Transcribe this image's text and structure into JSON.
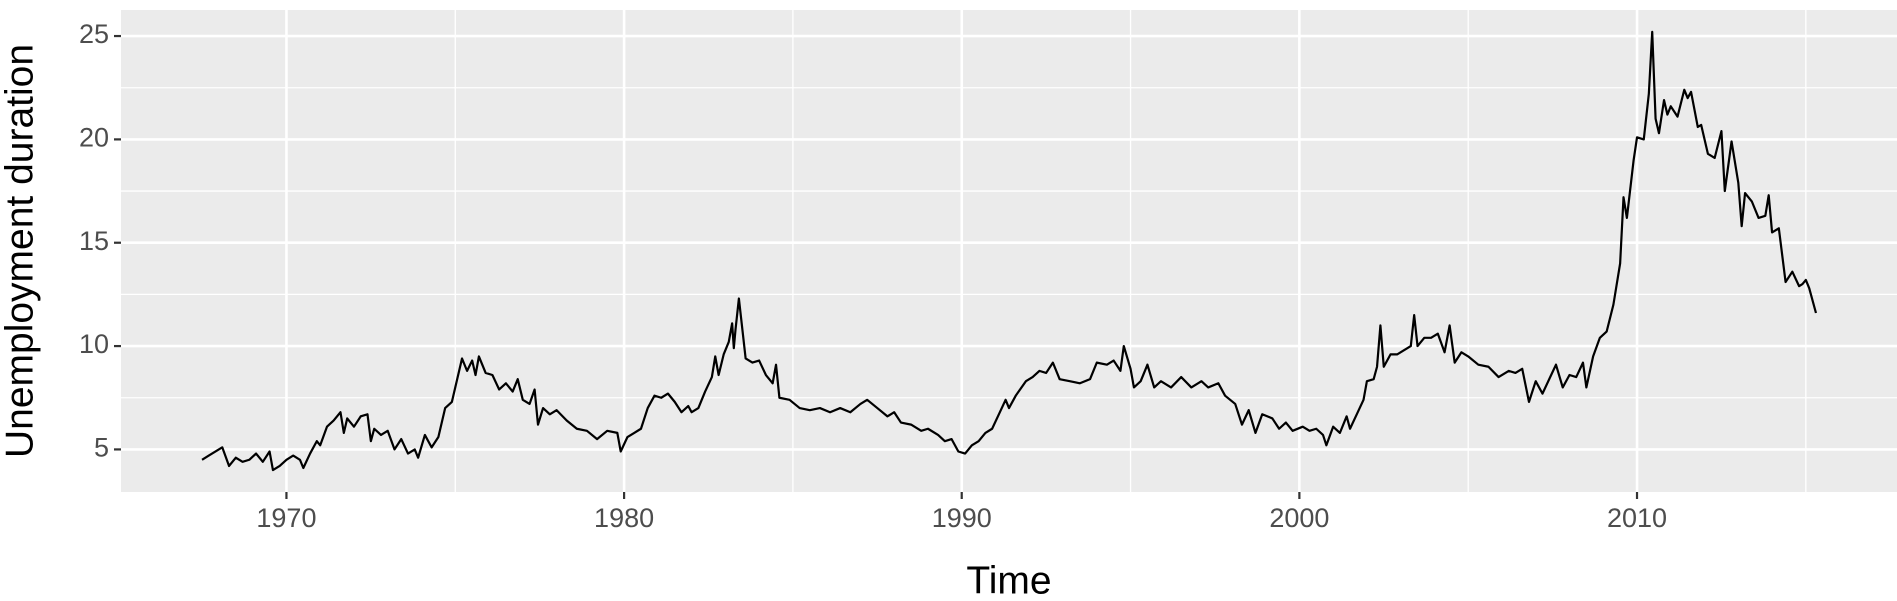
{
  "chart_data": {
    "type": "line",
    "xlabel": "Time",
    "ylabel": "Unemployment duration",
    "x": [
      1967.5,
      1967.7,
      1967.9,
      1968.1,
      1968.3,
      1968.5,
      1968.7,
      1968.9,
      1969.1,
      1969.3,
      1969.5,
      1969.6,
      1969.8,
      1970.0,
      1970.2,
      1970.4,
      1970.5,
      1970.7,
      1970.9,
      1971.0,
      1971.2,
      1971.4,
      1971.6,
      1971.7,
      1971.8,
      1972.0,
      1972.2,
      1972.4,
      1972.5,
      1972.6,
      1972.8,
      1973.0,
      1973.2,
      1973.4,
      1973.6,
      1973.8,
      1973.9,
      1974.1,
      1974.3,
      1974.5,
      1974.7,
      1974.9,
      1975.2,
      1975.35,
      1975.5,
      1975.6,
      1975.7,
      1975.9,
      1976.1,
      1976.3,
      1976.5,
      1976.7,
      1976.85,
      1977.0,
      1977.2,
      1977.35,
      1977.45,
      1977.6,
      1977.8,
      1978.0,
      1978.3,
      1978.6,
      1978.9,
      1979.2,
      1979.5,
      1979.8,
      1979.9,
      1980.1,
      1980.3,
      1980.5,
      1980.7,
      1980.9,
      1981.1,
      1981.3,
      1981.5,
      1981.7,
      1981.9,
      1982.0,
      1982.2,
      1982.4,
      1982.6,
      1982.7,
      1982.8,
      1982.95,
      1983.1,
      1983.2,
      1983.25,
      1983.3,
      1983.4,
      1983.6,
      1983.8,
      1984.0,
      1984.2,
      1984.4,
      1984.5,
      1984.6,
      1984.9,
      1985.2,
      1985.5,
      1985.8,
      1986.1,
      1986.4,
      1986.7,
      1987.0,
      1987.2,
      1987.5,
      1987.8,
      1988.0,
      1988.2,
      1988.5,
      1988.8,
      1989.0,
      1989.3,
      1989.5,
      1989.7,
      1989.9,
      1990.1,
      1990.3,
      1990.5,
      1990.7,
      1990.9,
      1991.1,
      1991.3,
      1991.4,
      1991.6,
      1991.9,
      1992.1,
      1992.3,
      1992.5,
      1992.7,
      1992.9,
      1993.2,
      1993.5,
      1993.8,
      1994.0,
      1994.3,
      1994.5,
      1994.7,
      1994.8,
      1995.0,
      1995.1,
      1995.3,
      1995.5,
      1995.7,
      1995.9,
      1996.2,
      1996.5,
      1996.8,
      1997.1,
      1997.3,
      1997.6,
      1997.8,
      1998.1,
      1998.3,
      1998.5,
      1998.7,
      1998.9,
      1999.2,
      1999.4,
      1999.6,
      1999.8,
      2000.1,
      2000.3,
      2000.5,
      2000.7,
      2000.8,
      2001.0,
      2001.2,
      2001.4,
      2001.5,
      2001.7,
      2001.9,
      2002.0,
      2002.2,
      2002.3,
      2002.4,
      2002.5,
      2002.7,
      2002.9,
      2003.1,
      2003.3,
      2003.4,
      2003.5,
      2003.7,
      2003.9,
      2004.1,
      2004.3,
      2004.45,
      2004.6,
      2004.8,
      2005.0,
      2005.3,
      2005.6,
      2005.9,
      2006.2,
      2006.4,
      2006.6,
      2006.8,
      2007.0,
      2007.2,
      2007.4,
      2007.6,
      2007.8,
      2008.0,
      2008.2,
      2008.4,
      2008.5,
      2008.7,
      2008.9,
      2009.1,
      2009.3,
      2009.5,
      2009.6,
      2009.7,
      2009.9,
      2010.0,
      2010.2,
      2010.35,
      2010.45,
      2010.55,
      2010.65,
      2010.8,
      2010.9,
      2011.0,
      2011.2,
      2011.4,
      2011.5,
      2011.6,
      2011.8,
      2011.9,
      2012.1,
      2012.3,
      2012.5,
      2012.6,
      2012.8,
      2013.0,
      2013.1,
      2013.2,
      2013.4,
      2013.6,
      2013.8,
      2013.9,
      2014.0,
      2014.2,
      2014.4,
      2014.6,
      2014.8,
      2014.9,
      2015.0,
      2015.1,
      2015.3
    ],
    "values": [
      4.5,
      4.7,
      4.9,
      5.1,
      4.2,
      4.6,
      4.4,
      4.5,
      4.8,
      4.4,
      4.9,
      4.0,
      4.2,
      4.5,
      4.7,
      4.5,
      4.1,
      4.8,
      5.4,
      5.2,
      6.1,
      6.4,
      6.8,
      5.8,
      6.5,
      6.1,
      6.6,
      6.7,
      5.4,
      6.0,
      5.7,
      5.9,
      5.0,
      5.5,
      4.8,
      5.0,
      4.6,
      5.7,
      5.1,
      5.6,
      7.0,
      7.3,
      9.4,
      8.8,
      9.3,
      8.6,
      9.5,
      8.7,
      8.6,
      7.9,
      8.2,
      7.8,
      8.4,
      7.4,
      7.2,
      7.9,
      6.2,
      7.0,
      6.7,
      6.9,
      6.4,
      6.0,
      5.9,
      5.5,
      5.9,
      5.8,
      4.9,
      5.6,
      5.8,
      6.0,
      7.0,
      7.6,
      7.5,
      7.7,
      7.3,
      6.8,
      7.1,
      6.8,
      7.0,
      7.8,
      8.5,
      9.5,
      8.6,
      9.6,
      10.2,
      11.1,
      9.9,
      10.8,
      12.3,
      9.4,
      9.2,
      9.3,
      8.6,
      8.2,
      9.1,
      7.5,
      7.4,
      7.0,
      6.9,
      7.0,
      6.8,
      7.0,
      6.8,
      7.2,
      7.4,
      7.0,
      6.6,
      6.8,
      6.3,
      6.2,
      5.9,
      6.0,
      5.7,
      5.4,
      5.5,
      4.9,
      4.8,
      5.2,
      5.4,
      5.8,
      6.0,
      6.7,
      7.4,
      7.0,
      7.6,
      8.3,
      8.5,
      8.8,
      8.7,
      9.2,
      8.4,
      8.3,
      8.2,
      8.4,
      9.2,
      9.1,
      9.3,
      8.8,
      10.0,
      8.9,
      8.0,
      8.3,
      9.1,
      8.0,
      8.3,
      8.0,
      8.5,
      8.0,
      8.3,
      8.0,
      8.2,
      7.6,
      7.2,
      6.2,
      6.9,
      5.8,
      6.7,
      6.5,
      6.0,
      6.3,
      5.9,
      6.1,
      5.9,
      6.0,
      5.7,
      5.2,
      6.1,
      5.8,
      6.6,
      6.0,
      6.7,
      7.4,
      8.3,
      8.4,
      9.0,
      11.0,
      9.0,
      9.6,
      9.6,
      9.8,
      10.0,
      11.5,
      10.0,
      10.4,
      10.4,
      10.6,
      9.7,
      11.0,
      9.2,
      9.7,
      9.5,
      9.1,
      9.0,
      8.5,
      8.8,
      8.7,
      8.9,
      7.3,
      8.3,
      7.7,
      8.4,
      9.1,
      8.0,
      8.6,
      8.5,
      9.2,
      8.0,
      9.5,
      10.4,
      10.7,
      12.0,
      14.0,
      17.2,
      16.2,
      19.0,
      20.1,
      20.0,
      22.2,
      25.2,
      21.0,
      20.3,
      21.9,
      21.2,
      21.6,
      21.1,
      22.4,
      22.0,
      22.3,
      20.6,
      20.7,
      19.3,
      19.1,
      20.4,
      17.5,
      19.9,
      17.9,
      15.8,
      17.4,
      17.0,
      16.2,
      16.3,
      17.3,
      15.5,
      15.7,
      13.1,
      13.6,
      12.9,
      13.0,
      13.2,
      12.8,
      11.6
    ],
    "color": "#000000",
    "xlim": [
      1965.1,
      2017.7
    ],
    "xticks": [
      1970,
      1980,
      1990,
      2000,
      2010
    ],
    "ylim": [
      2.94,
      26.26
    ],
    "yticks": [
      5,
      10,
      15,
      20,
      25
    ],
    "grid": true
  }
}
